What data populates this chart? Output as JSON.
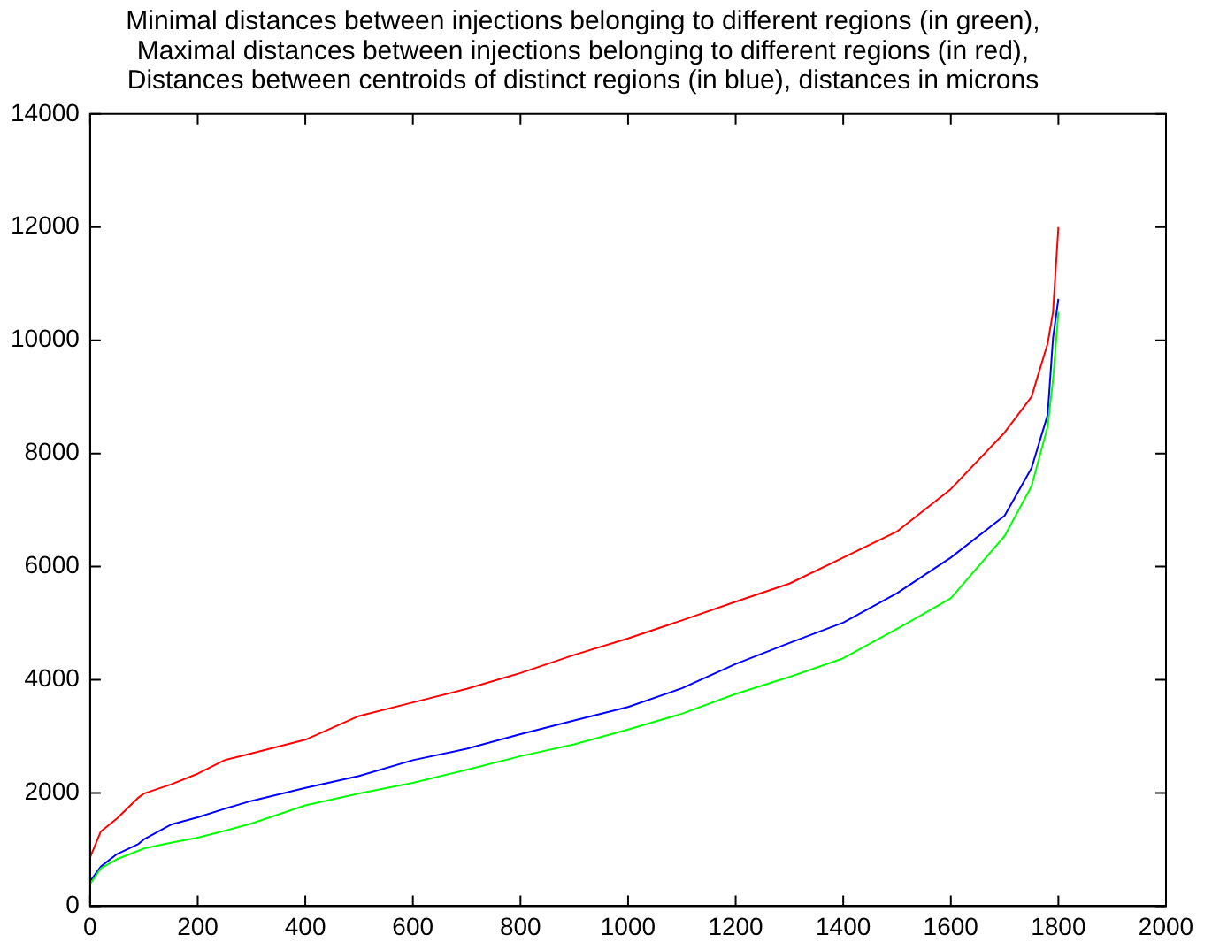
{
  "chart_data": {
    "type": "line",
    "title": "Minimal distances between injections belonging to different regions (in green),\nMaximal distances between injections belonging to different regions (in red),\nDistances between centroids of distinct regions (in blue), distances in microns",
    "x": [
      0,
      20,
      50,
      90,
      100,
      150,
      200,
      250,
      300,
      400,
      500,
      600,
      700,
      800,
      900,
      1000,
      1100,
      1200,
      1300,
      1400,
      1500,
      1600,
      1700,
      1750,
      1780,
      1790,
      1800
    ],
    "series": [
      {
        "color": "#00ff00",
        "values": [
          390,
          670,
          830,
          980,
          1020,
          1120,
          1210,
          1330,
          1460,
          1780,
          1990,
          2180,
          2410,
          2650,
          2860,
          3120,
          3400,
          3750,
          4050,
          4380,
          4900,
          5440,
          6540,
          7420,
          8470,
          9300,
          10500
        ]
      },
      {
        "color": "#ff0000",
        "values": [
          860,
          1320,
          1550,
          1920,
          1990,
          2150,
          2340,
          2580,
          2700,
          2940,
          3360,
          3600,
          3840,
          4120,
          4440,
          4730,
          5050,
          5380,
          5700,
          6160,
          6620,
          7370,
          8370,
          9000,
          9940,
          10500,
          12000
        ]
      },
      {
        "color": "#0000ff",
        "values": [
          440,
          700,
          920,
          1100,
          1180,
          1440,
          1570,
          1720,
          1860,
          2090,
          2300,
          2580,
          2780,
          3040,
          3280,
          3520,
          3850,
          4280,
          4650,
          5010,
          5530,
          6160,
          6900,
          7740,
          8680,
          10040,
          10730
        ]
      }
    ],
    "xlim": [
      0,
      2000
    ],
    "xticks": [
      0,
      200,
      400,
      600,
      800,
      1000,
      1200,
      1400,
      1600,
      1800,
      2000
    ],
    "ylim": [
      0,
      14000
    ],
    "yticks": [
      0,
      2000,
      4000,
      6000,
      8000,
      10000,
      12000,
      14000
    ],
    "grid": false,
    "legend": false,
    "marker": "none",
    "line_style": "solid"
  }
}
